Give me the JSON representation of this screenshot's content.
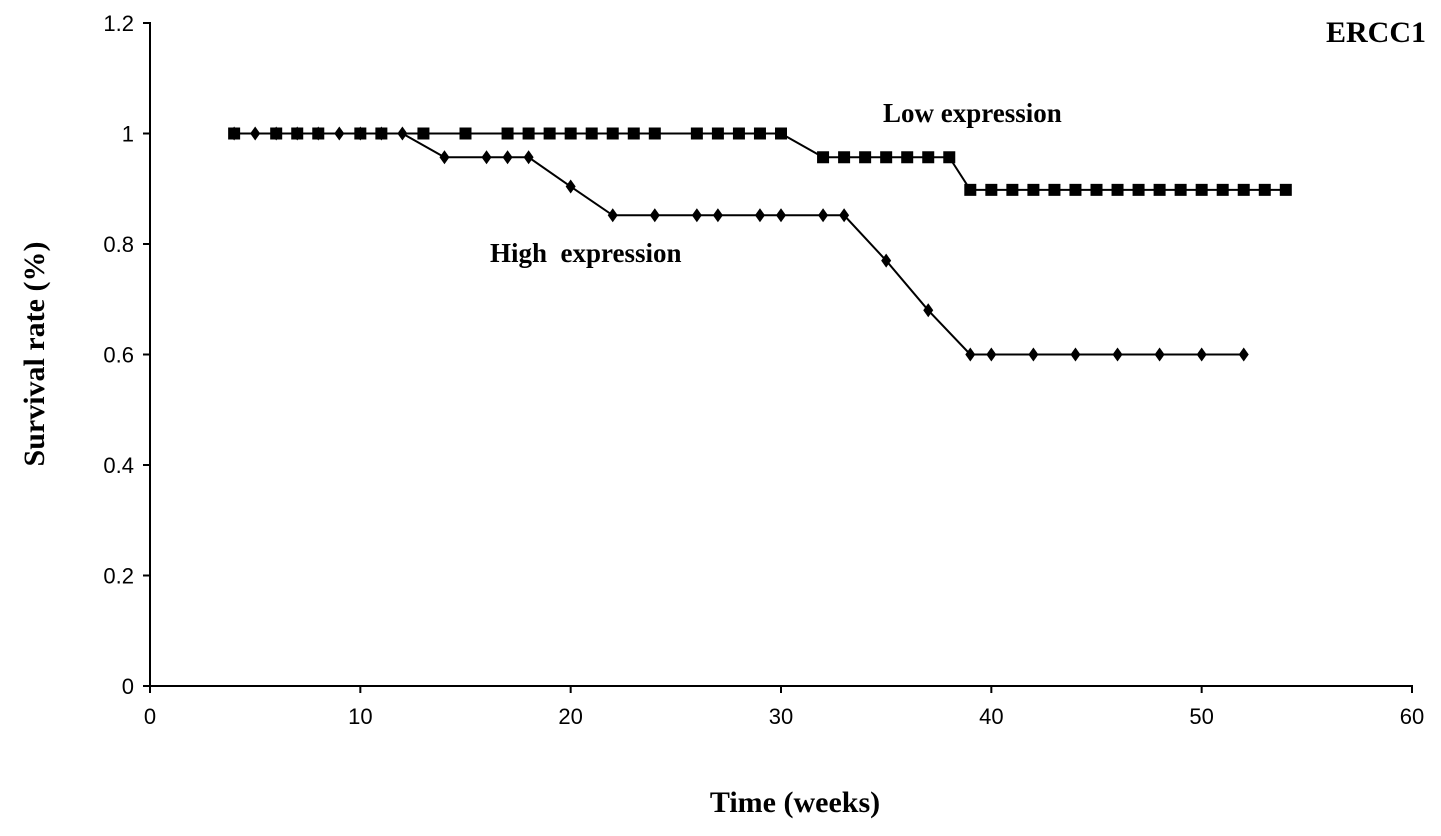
{
  "chart_data": {
    "type": "line",
    "title": "ERCC1",
    "xlabel": "Time (weeks)",
    "ylabel": "Survival rate (%)",
    "xlim": [
      0,
      60
    ],
    "ylim": [
      0,
      1.2
    ],
    "xticks": [
      0,
      10,
      20,
      30,
      40,
      50,
      60
    ],
    "yticks": [
      0,
      0.2,
      0.4,
      0.6,
      0.8,
      1,
      1.2
    ],
    "ytick_labels": [
      "0",
      "0.2",
      "0.4",
      "0.6",
      "0.8",
      "1",
      "1.2"
    ],
    "grid": false,
    "series": [
      {
        "name": "Low expression",
        "marker": "square",
        "color": "#000000",
        "points": [
          [
            4,
            1
          ],
          [
            6,
            1
          ],
          [
            7,
            1
          ],
          [
            8,
            1
          ],
          [
            10,
            1
          ],
          [
            11,
            1
          ],
          [
            13,
            1
          ],
          [
            15,
            1
          ],
          [
            17,
            1
          ],
          [
            18,
            1
          ],
          [
            19,
            1
          ],
          [
            20,
            1
          ],
          [
            21,
            1
          ],
          [
            22,
            1
          ],
          [
            23,
            1
          ],
          [
            24,
            1
          ],
          [
            26,
            1
          ],
          [
            27,
            1
          ],
          [
            28,
            1
          ],
          [
            29,
            1
          ],
          [
            30,
            1
          ],
          [
            32,
            0.957
          ],
          [
            33,
            0.957
          ],
          [
            34,
            0.957
          ],
          [
            35,
            0.957
          ],
          [
            36,
            0.957
          ],
          [
            37,
            0.957
          ],
          [
            38,
            0.957
          ],
          [
            39,
            0.898
          ],
          [
            40,
            0.898
          ],
          [
            41,
            0.898
          ],
          [
            42,
            0.898
          ],
          [
            43,
            0.898
          ],
          [
            44,
            0.898
          ],
          [
            45,
            0.898
          ],
          [
            46,
            0.898
          ],
          [
            47,
            0.898
          ],
          [
            48,
            0.898
          ],
          [
            49,
            0.898
          ],
          [
            50,
            0.898
          ],
          [
            51,
            0.898
          ],
          [
            52,
            0.898
          ],
          [
            53,
            0.898
          ],
          [
            54,
            0.898
          ]
        ]
      },
      {
        "name": "High  expression",
        "marker": "diamond",
        "color": "#000000",
        "points": [
          [
            4,
            1
          ],
          [
            5,
            1
          ],
          [
            6,
            1
          ],
          [
            7,
            1
          ],
          [
            8,
            1
          ],
          [
            9,
            1
          ],
          [
            10,
            1
          ],
          [
            11,
            1
          ],
          [
            12,
            1
          ],
          [
            14,
            0.957
          ],
          [
            16,
            0.957
          ],
          [
            17,
            0.957
          ],
          [
            18,
            0.957
          ],
          [
            20,
            0.904
          ],
          [
            22,
            0.852
          ],
          [
            24,
            0.852
          ],
          [
            26,
            0.852
          ],
          [
            27,
            0.852
          ],
          [
            29,
            0.852
          ],
          [
            30,
            0.852
          ],
          [
            32,
            0.852
          ],
          [
            33,
            0.852
          ],
          [
            35,
            0.77
          ],
          [
            37,
            0.68
          ],
          [
            39,
            0.6
          ],
          [
            40,
            0.6
          ],
          [
            42,
            0.6
          ],
          [
            44,
            0.6
          ],
          [
            46,
            0.6
          ],
          [
            48,
            0.6
          ],
          [
            50,
            0.6
          ],
          [
            52,
            0.6
          ]
        ]
      }
    ]
  }
}
